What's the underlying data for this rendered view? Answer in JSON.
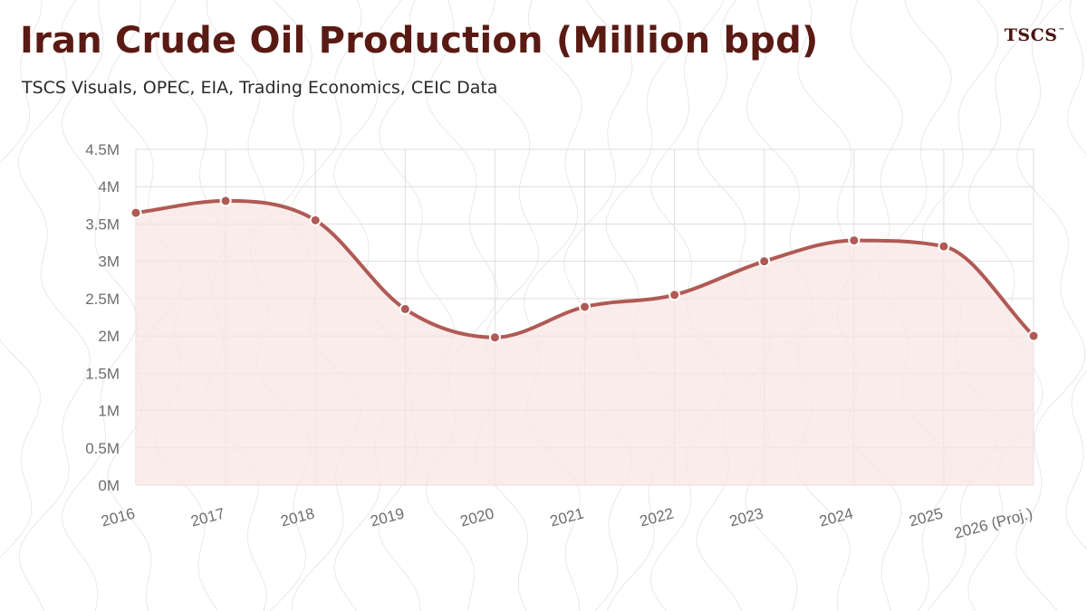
{
  "header": {
    "title": "Iran Crude Oil Production (Million bpd)",
    "subtitle": "TSCS Visuals, OPEC, EIA, Trading Economics, CEIC Data",
    "logo": "TSCS",
    "logo_mark": "™"
  },
  "colors": {
    "title": "#5a1a14",
    "line": "#b05a55",
    "fill": "#f7e5e3",
    "grid": "#e3dcdc",
    "axis_text": "#6e6e6e"
  },
  "chart_data": {
    "type": "area",
    "categories": [
      "2016",
      "2017",
      "2018",
      "2019",
      "2020",
      "2021",
      "2022",
      "2023",
      "2024",
      "2025",
      "2026 (Proj.)"
    ],
    "series": [
      {
        "values": [
          3.65,
          3.81,
          3.55,
          2.36,
          1.98,
          2.39,
          2.55,
          3.0,
          3.28,
          3.2,
          2.0
        ]
      }
    ],
    "y_ticks": [
      "0M",
      "0.5M",
      "1M",
      "1.5M",
      "2M",
      "2.5M",
      "3M",
      "3.5M",
      "4M",
      "4.5M"
    ],
    "ylim": [
      0,
      4.5
    ],
    "grid": true,
    "legend": "none",
    "title": "Iran Crude Oil Production (Million bpd)"
  }
}
